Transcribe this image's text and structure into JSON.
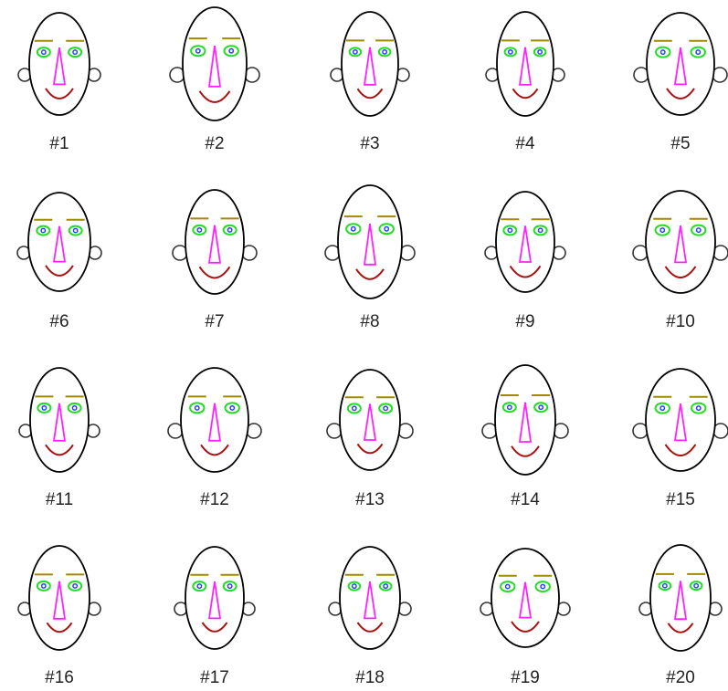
{
  "faces": [
    {
      "label": "#1"
    },
    {
      "label": "#2"
    },
    {
      "label": "#3"
    },
    {
      "label": "#4"
    },
    {
      "label": "#5"
    },
    {
      "label": "#6"
    },
    {
      "label": "#7"
    },
    {
      "label": "#8"
    },
    {
      "label": "#9"
    },
    {
      "label": "#10"
    },
    {
      "label": "#11"
    },
    {
      "label": "#12"
    },
    {
      "label": "#13"
    },
    {
      "label": "#14"
    },
    {
      "label": "#15"
    },
    {
      "label": "#16"
    },
    {
      "label": "#17"
    },
    {
      "label": "#18"
    },
    {
      "label": "#19"
    },
    {
      "label": "#20"
    }
  ]
}
